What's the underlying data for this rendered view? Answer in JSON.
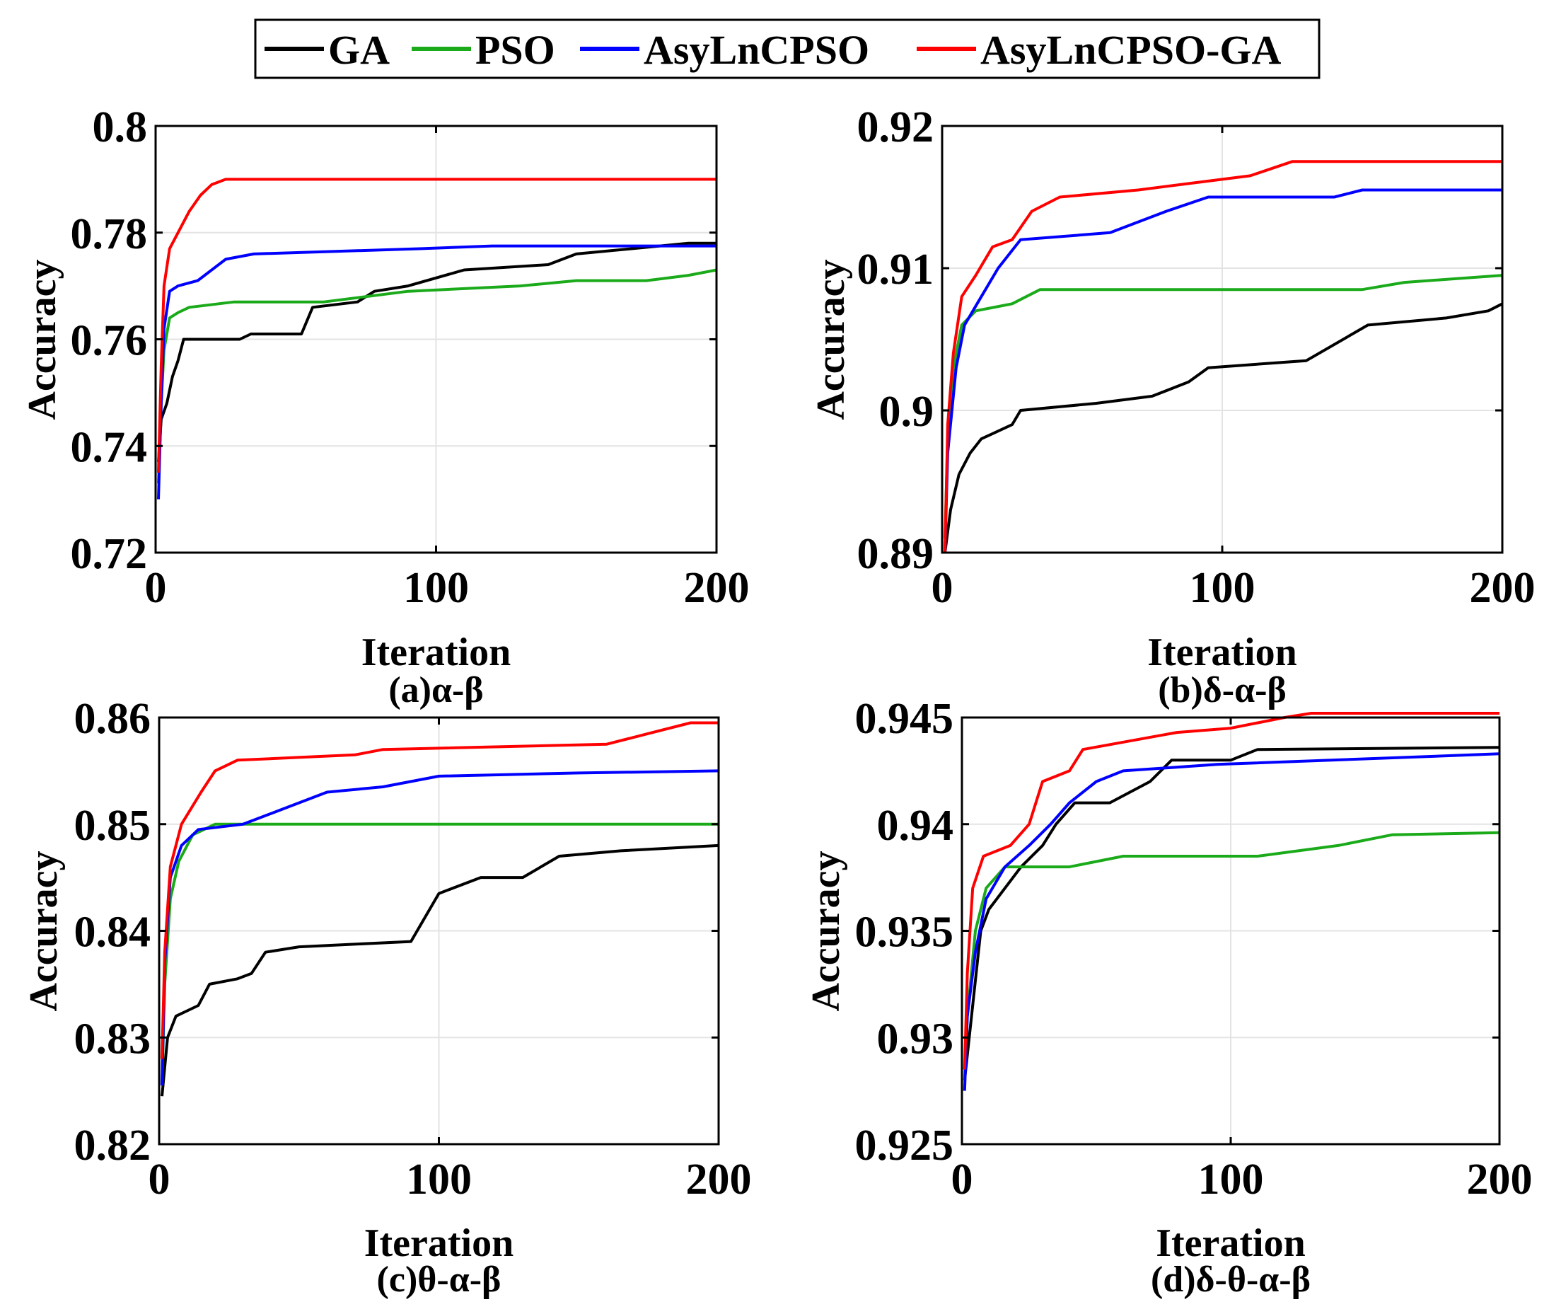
{
  "legend": {
    "items": [
      {
        "label": "GA",
        "color": "#000000"
      },
      {
        "label": "PSO",
        "color": "#1aaa1a"
      },
      {
        "label": "AsyLnCPSO",
        "color": "#0000ff"
      },
      {
        "label": "AsyLnCPSO-GA",
        "color": "#ff0000"
      }
    ]
  },
  "chart_data": [
    {
      "type": "line",
      "caption": "(a)α-β",
      "xlabel": "Iteration",
      "ylabel": "Accuracy",
      "xlim": [
        0,
        200
      ],
      "ylim": [
        0.72,
        0.8
      ],
      "xticks": [
        0,
        100,
        200
      ],
      "xtick_labels": [
        "0",
        "100",
        "200"
      ],
      "yticks": [
        0.72,
        0.74,
        0.76,
        0.78,
        0.8
      ],
      "ytick_labels": [
        "0.72",
        "0.74",
        "0.76",
        "0.78",
        "0.8"
      ],
      "grid": true,
      "series": [
        {
          "name": "GA",
          "color": "#000000",
          "points": [
            [
              1,
              0.737
            ],
            [
              2,
              0.745
            ],
            [
              4,
              0.748
            ],
            [
              6,
              0.753
            ],
            [
              8,
              0.756
            ],
            [
              10,
              0.76
            ],
            [
              30,
              0.76
            ],
            [
              34,
              0.761
            ],
            [
              52,
              0.761
            ],
            [
              56,
              0.766
            ],
            [
              72,
              0.767
            ],
            [
              78,
              0.769
            ],
            [
              90,
              0.77
            ],
            [
              110,
              0.773
            ],
            [
              140,
              0.774
            ],
            [
              150,
              0.776
            ],
            [
              170,
              0.777
            ],
            [
              190,
              0.778
            ],
            [
              200,
              0.778
            ]
          ]
        },
        {
          "name": "PSO",
          "color": "#1aaa1a",
          "points": [
            [
              1,
              0.733
            ],
            [
              2,
              0.748
            ],
            [
              3,
              0.758
            ],
            [
              5,
              0.764
            ],
            [
              8,
              0.765
            ],
            [
              12,
              0.766
            ],
            [
              28,
              0.767
            ],
            [
              60,
              0.767
            ],
            [
              90,
              0.769
            ],
            [
              130,
              0.77
            ],
            [
              150,
              0.771
            ],
            [
              175,
              0.771
            ],
            [
              190,
              0.772
            ],
            [
              200,
              0.773
            ]
          ]
        },
        {
          "name": "AsyLnCPSO",
          "color": "#0000ff",
          "points": [
            [
              1,
              0.73
            ],
            [
              2,
              0.748
            ],
            [
              3,
              0.762
            ],
            [
              5,
              0.769
            ],
            [
              8,
              0.77
            ],
            [
              15,
              0.771
            ],
            [
              25,
              0.775
            ],
            [
              35,
              0.776
            ],
            [
              95,
              0.777
            ],
            [
              120,
              0.7775
            ],
            [
              200,
              0.7775
            ]
          ]
        },
        {
          "name": "AsyLnCPSO-GA",
          "color": "#ff0000",
          "points": [
            [
              1,
              0.735
            ],
            [
              2,
              0.755
            ],
            [
              3,
              0.77
            ],
            [
              5,
              0.777
            ],
            [
              8,
              0.78
            ],
            [
              12,
              0.784
            ],
            [
              16,
              0.787
            ],
            [
              20,
              0.789
            ],
            [
              25,
              0.79
            ],
            [
              200,
              0.79
            ]
          ]
        }
      ]
    },
    {
      "type": "line",
      "caption": "(b)δ-α-β",
      "xlabel": "Iteration",
      "ylabel": "Accuracy",
      "xlim": [
        0,
        200
      ],
      "ylim": [
        0.89,
        0.92
      ],
      "xticks": [
        0,
        100,
        200
      ],
      "xtick_labels": [
        "0",
        "100",
        "200"
      ],
      "yticks": [
        0.89,
        0.9,
        0.91,
        0.92
      ],
      "ytick_labels": [
        "0.89",
        "0.9",
        "0.91",
        "0.92"
      ],
      "grid": true,
      "series": [
        {
          "name": "GA",
          "color": "#000000",
          "points": [
            [
              1,
              0.89
            ],
            [
              3,
              0.893
            ],
            [
              6,
              0.8955
            ],
            [
              10,
              0.897
            ],
            [
              14,
              0.898
            ],
            [
              25,
              0.899
            ],
            [
              28,
              0.9
            ],
            [
              55,
              0.9005
            ],
            [
              75,
              0.901
            ],
            [
              88,
              0.902
            ],
            [
              95,
              0.903
            ],
            [
              130,
              0.9035
            ],
            [
              152,
              0.906
            ],
            [
              180,
              0.9065
            ],
            [
              195,
              0.907
            ],
            [
              200,
              0.9075
            ]
          ]
        },
        {
          "name": "PSO",
          "color": "#1aaa1a",
          "points": [
            [
              1,
              0.891
            ],
            [
              2,
              0.898
            ],
            [
              4,
              0.903
            ],
            [
              7,
              0.906
            ],
            [
              12,
              0.907
            ],
            [
              25,
              0.9075
            ],
            [
              35,
              0.9085
            ],
            [
              150,
              0.9085
            ],
            [
              165,
              0.909
            ],
            [
              200,
              0.9095
            ]
          ]
        },
        {
          "name": "AsyLnCPSO",
          "color": "#0000ff",
          "points": [
            [
              1,
              0.89
            ],
            [
              2,
              0.897
            ],
            [
              5,
              0.903
            ],
            [
              8,
              0.906
            ],
            [
              14,
              0.908
            ],
            [
              20,
              0.91
            ],
            [
              28,
              0.912
            ],
            [
              60,
              0.9125
            ],
            [
              80,
              0.914
            ],
            [
              95,
              0.915
            ],
            [
              140,
              0.915
            ],
            [
              150,
              0.9155
            ],
            [
              200,
              0.9155
            ]
          ]
        },
        {
          "name": "AsyLnCPSO-GA",
          "color": "#ff0000",
          "points": [
            [
              1,
              0.89
            ],
            [
              2,
              0.899
            ],
            [
              4,
              0.904
            ],
            [
              7,
              0.908
            ],
            [
              12,
              0.9095
            ],
            [
              18,
              0.9115
            ],
            [
              25,
              0.912
            ],
            [
              32,
              0.914
            ],
            [
              42,
              0.915
            ],
            [
              70,
              0.9155
            ],
            [
              90,
              0.916
            ],
            [
              110,
              0.9165
            ],
            [
              125,
              0.9175
            ],
            [
              200,
              0.9175
            ]
          ]
        }
      ]
    },
    {
      "type": "line",
      "caption": "(c)θ-α-β",
      "xlabel": "Iteration",
      "ylabel": "Accuracy",
      "xlim": [
        0,
        200
      ],
      "ylim": [
        0.82,
        0.86
      ],
      "xticks": [
        0,
        100,
        200
      ],
      "xtick_labels": [
        "0",
        "100",
        "200"
      ],
      "yticks": [
        0.82,
        0.83,
        0.84,
        0.85,
        0.86
      ],
      "ytick_labels": [
        "0.82",
        "0.83",
        "0.84",
        "0.85",
        "0.86"
      ],
      "grid": true,
      "series": [
        {
          "name": "GA",
          "color": "#000000",
          "points": [
            [
              1,
              0.8245
            ],
            [
              3,
              0.83
            ],
            [
              6,
              0.832
            ],
            [
              14,
              0.833
            ],
            [
              18,
              0.835
            ],
            [
              28,
              0.8355
            ],
            [
              33,
              0.836
            ],
            [
              38,
              0.838
            ],
            [
              50,
              0.8385
            ],
            [
              90,
              0.839
            ],
            [
              100,
              0.8435
            ],
            [
              115,
              0.845
            ],
            [
              130,
              0.845
            ],
            [
              143,
              0.847
            ],
            [
              165,
              0.8475
            ],
            [
              200,
              0.848
            ]
          ]
        },
        {
          "name": "PSO",
          "color": "#1aaa1a",
          "points": [
            [
              1,
              0.8255
            ],
            [
              2,
              0.835
            ],
            [
              4,
              0.843
            ],
            [
              7,
              0.8465
            ],
            [
              12,
              0.849
            ],
            [
              20,
              0.85
            ],
            [
              200,
              0.85
            ]
          ]
        },
        {
          "name": "AsyLnCPSO",
          "color": "#0000ff",
          "points": [
            [
              1,
              0.8255
            ],
            [
              2,
              0.837
            ],
            [
              4,
              0.845
            ],
            [
              8,
              0.848
            ],
            [
              14,
              0.8495
            ],
            [
              30,
              0.85
            ],
            [
              40,
              0.851
            ],
            [
              60,
              0.853
            ],
            [
              80,
              0.8535
            ],
            [
              100,
              0.8545
            ],
            [
              150,
              0.8548
            ],
            [
              200,
              0.855
            ]
          ]
        },
        {
          "name": "AsyLnCPSO-GA",
          "color": "#ff0000",
          "points": [
            [
              1,
              0.828
            ],
            [
              2,
              0.838
            ],
            [
              4,
              0.846
            ],
            [
              8,
              0.85
            ],
            [
              15,
              0.853
            ],
            [
              20,
              0.855
            ],
            [
              28,
              0.856
            ],
            [
              70,
              0.8565
            ],
            [
              80,
              0.857
            ],
            [
              160,
              0.8575
            ],
            [
              175,
              0.8585
            ],
            [
              190,
              0.8595
            ],
            [
              200,
              0.8595
            ]
          ]
        }
      ]
    },
    {
      "type": "line",
      "caption": "(d)δ-θ-α-β",
      "xlabel": "Iteration",
      "ylabel": "Accuracy",
      "xlim": [
        0,
        200
      ],
      "ylim": [
        0.925,
        0.945
      ],
      "xticks": [
        0,
        100,
        200
      ],
      "xtick_labels": [
        "0",
        "100",
        "200"
      ],
      "yticks": [
        0.925,
        0.93,
        0.935,
        0.94,
        0.945
      ],
      "ytick_labels": [
        "0.925",
        "0.93",
        "0.935",
        "0.94",
        "0.945"
      ],
      "grid": true,
      "series": [
        {
          "name": "GA",
          "color": "#000000",
          "points": [
            [
              1,
              0.928
            ],
            [
              4,
              0.9315
            ],
            [
              7,
              0.935
            ],
            [
              10,
              0.936
            ],
            [
              16,
              0.937
            ],
            [
              22,
              0.938
            ],
            [
              30,
              0.939
            ],
            [
              35,
              0.94
            ],
            [
              42,
              0.941
            ],
            [
              55,
              0.941
            ],
            [
              70,
              0.942
            ],
            [
              78,
              0.943
            ],
            [
              100,
              0.943
            ],
            [
              110,
              0.9435
            ],
            [
              200,
              0.9436
            ]
          ]
        },
        {
          "name": "PSO",
          "color": "#1aaa1a",
          "points": [
            [
              1,
              0.928
            ],
            [
              2,
              0.931
            ],
            [
              5,
              0.935
            ],
            [
              9,
              0.937
            ],
            [
              16,
              0.938
            ],
            [
              40,
              0.938
            ],
            [
              60,
              0.9385
            ],
            [
              110,
              0.9385
            ],
            [
              140,
              0.939
            ],
            [
              160,
              0.9395
            ],
            [
              200,
              0.9396
            ]
          ]
        },
        {
          "name": "AsyLnCPSO",
          "color": "#0000ff",
          "points": [
            [
              1,
              0.9275
            ],
            [
              2,
              0.931
            ],
            [
              5,
              0.934
            ],
            [
              9,
              0.9365
            ],
            [
              16,
              0.938
            ],
            [
              25,
              0.939
            ],
            [
              33,
              0.94
            ],
            [
              40,
              0.941
            ],
            [
              50,
              0.942
            ],
            [
              60,
              0.9425
            ],
            [
              95,
              0.9428
            ],
            [
              200,
              0.9433
            ]
          ]
        },
        {
          "name": "AsyLnCPSO-GA",
          "color": "#ff0000",
          "points": [
            [
              1,
              0.9285
            ],
            [
              2,
              0.933
            ],
            [
              4,
              0.937
            ],
            [
              8,
              0.9385
            ],
            [
              18,
              0.939
            ],
            [
              25,
              0.94
            ],
            [
              30,
              0.942
            ],
            [
              40,
              0.9425
            ],
            [
              45,
              0.9435
            ],
            [
              80,
              0.9443
            ],
            [
              100,
              0.9445
            ],
            [
              120,
              0.945
            ],
            [
              130,
              0.9452
            ],
            [
              200,
              0.9452
            ]
          ]
        }
      ]
    }
  ]
}
